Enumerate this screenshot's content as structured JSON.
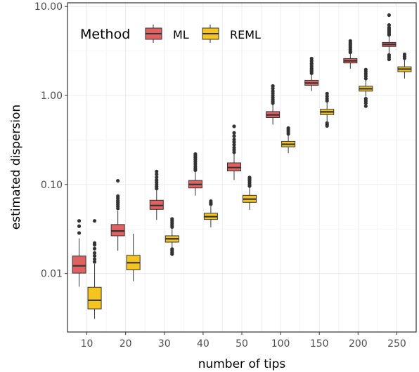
{
  "chart_data": {
    "type": "boxplot",
    "xlabel": "number of tips",
    "ylabel": "estimated dispersion",
    "y_scale": "log10",
    "ylim": [
      0.0022,
      11
    ],
    "yticks": [
      {
        "value": 10,
        "label": "10.00"
      },
      {
        "value": 1,
        "label": "1.00"
      },
      {
        "value": 0.1,
        "label": "0.10"
      },
      {
        "value": 0.01,
        "label": "0.01"
      }
    ],
    "categories": [
      "10",
      "20",
      "30",
      "40",
      "50",
      "100",
      "150",
      "200",
      "250"
    ],
    "grid": true,
    "legend": {
      "title": "Method",
      "position": "top-left",
      "items": [
        {
          "name": "ML",
          "color": "#e06161"
        },
        {
          "name": "REML",
          "color": "#f5c41f"
        }
      ]
    },
    "series": [
      {
        "name": "ML",
        "color": "#e06161",
        "boxes": [
          {
            "min": 0.0071,
            "q1": 0.0101,
            "median": 0.0122,
            "q3": 0.0157,
            "max": 0.0248,
            "outliers": [
              0.0285,
              0.034,
              0.039
            ]
          },
          {
            "min": 0.018,
            "q1": 0.0265,
            "median": 0.03,
            "q3": 0.0355,
            "max": 0.051,
            "outliers": [
              0.054,
              0.057,
              0.06,
              0.063,
              0.066,
              0.07,
              0.074,
              0.11
            ]
          },
          {
            "min": 0.04,
            "q1": 0.0525,
            "median": 0.058,
            "q3": 0.0665,
            "max": 0.086,
            "outliers": [
              0.09,
              0.095,
              0.1,
              0.106,
              0.112,
              0.12,
              0.13,
              0.14
            ]
          },
          {
            "min": 0.075,
            "q1": 0.0915,
            "median": 0.1,
            "q3": 0.111,
            "max": 0.139,
            "outliers": [
              0.145,
              0.152,
              0.16,
              0.17,
              0.18,
              0.19,
              0.2,
              0.21,
              0.22
            ]
          },
          {
            "min": 0.112,
            "q1": 0.142,
            "median": 0.155,
            "q3": 0.175,
            "max": 0.22,
            "outliers": [
              0.23,
              0.245,
              0.26,
              0.28,
              0.3,
              0.32,
              0.35,
              0.38,
              0.45
            ]
          },
          {
            "min": 0.47,
            "q1": 0.565,
            "median": 0.605,
            "q3": 0.66,
            "max": 0.79,
            "outliers": [
              0.82,
              0.86,
              0.9,
              0.95,
              1.0,
              1.06,
              1.12,
              1.2,
              1.28
            ]
          },
          {
            "min": 1.12,
            "q1": 1.3,
            "median": 1.38,
            "q3": 1.48,
            "max": 1.72,
            "outliers": [
              1.78,
              1.85,
              1.92,
              2.0,
              2.1,
              2.2,
              2.3,
              2.45,
              2.6
            ]
          },
          {
            "min": 2.0,
            "q1": 2.32,
            "median": 2.45,
            "q3": 2.6,
            "max": 2.95,
            "outliers": [
              3.05,
              3.15,
              3.3,
              3.45,
              3.6,
              3.75,
              3.9,
              4.1
            ]
          },
          {
            "min": 2.95,
            "q1": 3.55,
            "median": 3.75,
            "q3": 3.95,
            "max": 4.6,
            "outliers": [
              2.55,
              2.7,
              2.85,
              4.8,
              5.0,
              5.2,
              5.4,
              5.6,
              5.8,
              6.2,
              8.0
            ]
          }
        ]
      },
      {
        "name": "REML",
        "color": "#f5c41f",
        "boxes": [
          {
            "min": 0.0031,
            "q1": 0.004,
            "median": 0.005,
            "q3": 0.007,
            "max": 0.0128,
            "outliers": [
              0.0135,
              0.0145,
              0.0158,
              0.017,
              0.019,
              0.021,
              0.022,
              0.039
            ]
          },
          {
            "min": 0.0082,
            "q1": 0.011,
            "median": 0.0132,
            "q3": 0.016,
            "max": 0.028,
            "outliers": []
          },
          {
            "min": 0.0195,
            "q1": 0.0225,
            "median": 0.0245,
            "q3": 0.0265,
            "max": 0.0315,
            "outliers": [
              0.0165,
              0.0172,
              0.018,
              0.0188,
              0.0333,
              0.035,
              0.037,
              0.039,
              0.041
            ]
          },
          {
            "min": 0.033,
            "q1": 0.0405,
            "median": 0.0435,
            "q3": 0.0475,
            "max": 0.057,
            "outliers": [
              0.06,
              0.062,
              0.065
            ]
          },
          {
            "min": 0.052,
            "q1": 0.063,
            "median": 0.0685,
            "q3": 0.0755,
            "max": 0.092,
            "outliers": [
              0.096,
              0.1,
              0.105,
              0.11,
              0.115,
              0.12
            ]
          },
          {
            "min": 0.225,
            "q1": 0.265,
            "median": 0.283,
            "q3": 0.305,
            "max": 0.355,
            "outliers": [
              0.37,
              0.39,
              0.41,
              0.43
            ]
          },
          {
            "min": 0.515,
            "q1": 0.61,
            "median": 0.655,
            "q3": 0.7,
            "max": 0.83,
            "outliers": [
              0.455,
              0.47,
              0.49,
              0.87,
              0.92,
              0.98,
              1.05
            ]
          },
          {
            "min": 0.97,
            "q1": 1.12,
            "median": 1.19,
            "q3": 1.27,
            "max": 1.48,
            "outliers": [
              0.76,
              0.82,
              0.87,
              0.92,
              1.55,
              1.65,
              1.75,
              1.85,
              1.95
            ]
          },
          {
            "min": 1.55,
            "q1": 1.85,
            "median": 1.98,
            "q3": 2.1,
            "max": 2.5,
            "outliers": [
              2.62,
              2.75,
              2.9
            ]
          }
        ]
      }
    ]
  }
}
